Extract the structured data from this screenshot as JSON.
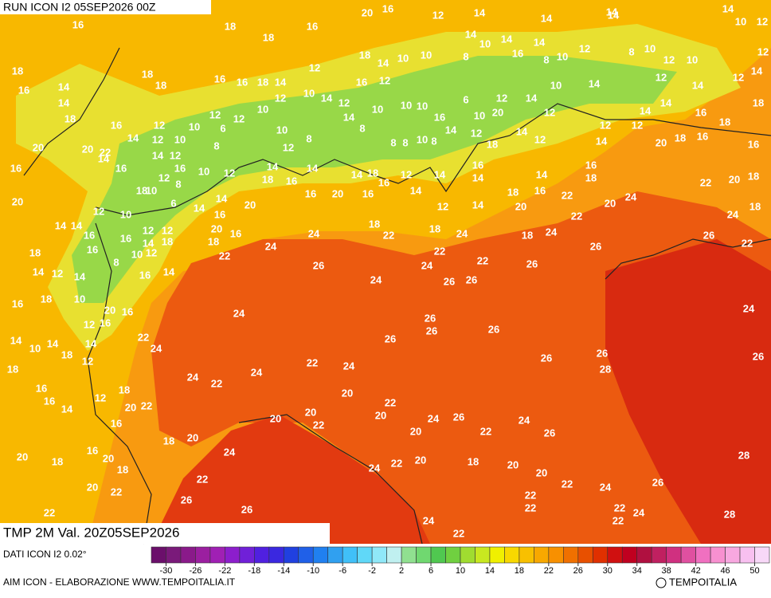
{
  "header": {
    "run": "RUN ICON I2 05SEP2026 00Z"
  },
  "footer": {
    "field": "TMP 2M Val. 20Z05SEP2026",
    "source": "DATI ICON I2 0.02°",
    "credit": "AIM ICON - ELABORAZIONE WWW.TEMPOITALIA.IT",
    "logo": "TEMPOITALIA"
  },
  "legend": {
    "lim": [
      -32,
      52
    ],
    "ticks": [
      -30,
      -26,
      -22,
      -18,
      -14,
      -10,
      -6,
      -2,
      2,
      6,
      10,
      14,
      18,
      22,
      26,
      30,
      34,
      38,
      42,
      46,
      50
    ],
    "colors": [
      "#6b0f6b",
      "#7a1a7a",
      "#8a1a8a",
      "#9b1fa0",
      "#a020b4",
      "#8c1ecc",
      "#7020d8",
      "#5020e0",
      "#3a28e0",
      "#2040e0",
      "#2060e8",
      "#2080f0",
      "#30a0f0",
      "#40c0f8",
      "#60d8f8",
      "#90e8f8",
      "#c0f0f0",
      "#90e090",
      "#70d870",
      "#50c850",
      "#70d040",
      "#a0dc30",
      "#c8e820",
      "#f0f000",
      "#f8d800",
      "#f8c000",
      "#f8a800",
      "#f89000",
      "#f07000",
      "#e85000",
      "#e03000",
      "#d01010",
      "#c00020",
      "#b01040",
      "#c02060",
      "#d03080",
      "#e050a0",
      "#f070c0",
      "#f890d0",
      "#f8a8e0",
      "#f8c0f0",
      "#f8d8f8"
    ]
  },
  "map": {
    "labels": [
      16,
      18,
      18,
      16,
      20,
      16,
      12,
      14,
      14,
      14,
      14,
      10,
      12,
      18,
      16,
      18,
      18,
      16,
      16,
      18,
      14,
      12,
      18,
      14,
      10,
      10,
      8,
      14,
      10,
      14,
      16,
      14,
      8,
      10,
      12,
      14,
      8,
      10,
      12,
      10,
      12,
      14,
      12,
      14,
      12,
      14,
      14,
      18,
      16,
      12,
      10,
      12,
      6,
      12,
      10,
      12,
      10,
      14,
      12,
      14,
      16,
      10,
      12,
      10,
      10,
      16,
      6,
      10,
      20,
      12,
      14,
      12,
      10,
      14,
      14,
      14,
      16,
      18,
      18,
      20,
      20,
      22,
      14,
      12,
      10,
      8,
      10,
      12,
      8,
      8,
      8,
      8,
      10,
      8,
      14,
      12,
      18,
      14,
      12,
      12,
      14,
      12,
      20,
      18,
      16,
      16,
      16,
      14,
      16,
      14,
      12,
      16,
      10,
      12,
      12,
      18,
      10,
      8,
      14,
      18,
      16,
      14,
      14,
      18,
      12,
      14,
      16,
      14,
      14,
      16,
      18,
      22,
      20,
      18,
      20,
      12,
      10,
      6,
      14,
      14,
      20,
      16,
      20,
      16,
      16,
      14,
      12,
      14,
      18,
      20,
      16,
      22,
      22,
      20,
      24,
      24,
      18,
      14,
      14,
      16,
      12,
      12,
      16,
      14,
      18,
      16,
      20,
      16,
      18,
      22,
      24,
      18,
      22,
      18,
      24,
      18,
      24,
      26,
      26,
      22,
      18,
      14,
      12,
      14,
      16,
      8,
      10,
      12,
      16,
      14,
      24,
      26,
      24,
      24,
      22,
      26,
      26,
      22,
      26,
      16,
      18,
      10,
      20,
      16,
      24,
      26,
      26,
      26,
      14,
      10,
      14,
      18,
      12,
      16,
      14,
      12,
      22,
      24,
      26,
      26,
      26,
      28,
      24,
      26,
      18,
      16,
      16,
      14,
      12,
      18,
      20,
      22,
      24,
      22,
      24,
      22,
      24,
      20,
      22,
      16,
      20,
      20,
      22,
      20,
      20,
      24,
      26,
      22,
      24,
      26,
      18,
      20,
      24,
      16,
      20,
      20,
      18,
      18,
      24,
      22,
      20,
      18,
      20,
      20,
      22,
      24,
      26,
      28,
      20,
      22,
      22,
      26,
      26,
      22,
      22,
      22,
      24,
      22,
      28,
      22,
      24,
      22
    ]
  }
}
